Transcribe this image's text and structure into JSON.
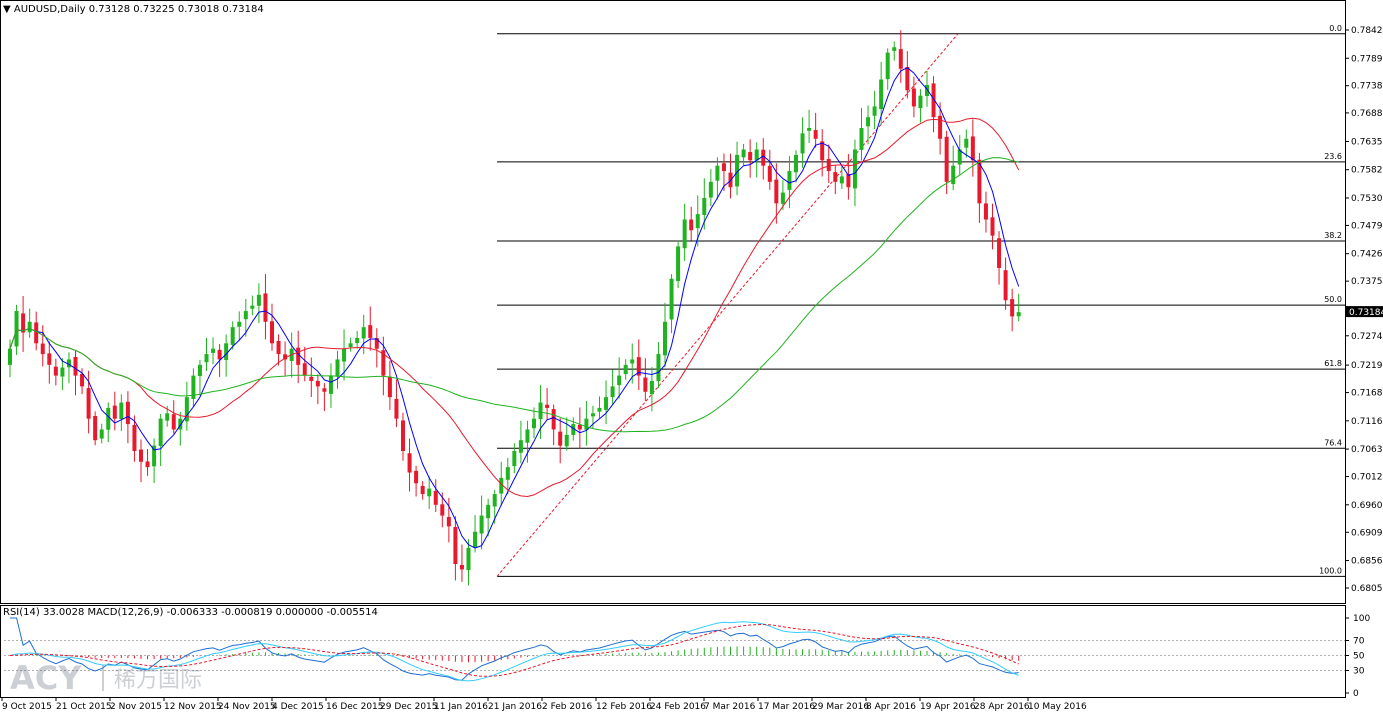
{
  "header": {
    "title": "AUDUSD,Daily  0.73128 0.73225 0.73018 0.73184"
  },
  "indicator_header": "RSI(14) 33.0028  MACD(12,26,9) -0.006333 -0.000819 0.000000 -0.005514",
  "watermark": {
    "latin": "ACY",
    "cjk": "稀万国际"
  },
  "current_price": "0.73184",
  "chart_data": {
    "type": "candlestick",
    "symbol": "AUDUSD",
    "timeframe": "Daily",
    "title": "AUDUSD,Daily  0.73128 0.73225 0.73018 0.73184",
    "ylim": [
      0.68055,
      0.7842
    ],
    "y_ticks": [
      "0.78420",
      "0.77895",
      "0.77385",
      "0.76880",
      "0.76350",
      "0.75825",
      "0.75300",
      "0.74790",
      "0.74265",
      "0.73755",
      "0.72740",
      "0.72195",
      "0.71685",
      "0.71160",
      "0.70635",
      "0.70125",
      "0.69600",
      "0.69090",
      "0.68565",
      "0.68055"
    ],
    "x_ticks": [
      "9 Oct 2015",
      "21 Oct 2015",
      "2 Nov 2015",
      "12 Nov 2015",
      "24 Nov 2015",
      "4 Dec 2015",
      "16 Dec 2015",
      "29 Dec 2015",
      "11 Jan 2016",
      "21 Jan 2016",
      "2 Feb 2016",
      "12 Feb 2016",
      "24 Feb 2016",
      "7 Mar 2016",
      "17 Mar 2016",
      "29 Mar 2016",
      "8 Apr 2016",
      "19 Apr 2016",
      "28 Apr 2016",
      "10 May 2016"
    ],
    "fibonacci": {
      "high": 0.7835,
      "low": 0.6827,
      "levels": [
        {
          "label": "0.0",
          "value": 0.7835
        },
        {
          "label": "23.6",
          "value": 0.7597
        },
        {
          "label": "38.2",
          "value": 0.745
        },
        {
          "label": "50.0",
          "value": 0.7331
        },
        {
          "label": "61.8",
          "value": 0.7212
        },
        {
          "label": "76.4",
          "value": 0.7065
        },
        {
          "label": "100.0",
          "value": 0.6827
        }
      ]
    },
    "close": [
      0.725,
      0.732,
      0.728,
      0.73,
      0.726,
      0.724,
      0.722,
      0.72,
      0.7215,
      0.723,
      0.72,
      0.718,
      0.712,
      0.708,
      0.71,
      0.714,
      0.712,
      0.715,
      0.711,
      0.706,
      0.704,
      0.703,
      0.707,
      0.712,
      0.713,
      0.71,
      0.712,
      0.716,
      0.72,
      0.722,
      0.724,
      0.725,
      0.723,
      0.726,
      0.729,
      0.73,
      0.732,
      0.733,
      0.735,
      0.73,
      0.726,
      0.724,
      0.723,
      0.725,
      0.722,
      0.72,
      0.719,
      0.718,
      0.717,
      0.72,
      0.723,
      0.725,
      0.726,
      0.727,
      0.729,
      0.727,
      0.725,
      0.72,
      0.716,
      0.712,
      0.706,
      0.702,
      0.7,
      0.698,
      0.699,
      0.696,
      0.694,
      0.692,
      0.685,
      0.684,
      0.688,
      0.691,
      0.694,
      0.696,
      0.698,
      0.701,
      0.703,
      0.706,
      0.708,
      0.71,
      0.712,
      0.715,
      0.714,
      0.71,
      0.707,
      0.709,
      0.711,
      0.71,
      0.712,
      0.713,
      0.714,
      0.716,
      0.718,
      0.72,
      0.722,
      0.723,
      0.72,
      0.717,
      0.719,
      0.724,
      0.73,
      0.738,
      0.744,
      0.749,
      0.747,
      0.75,
      0.753,
      0.756,
      0.759,
      0.758,
      0.755,
      0.761,
      0.762,
      0.76,
      0.762,
      0.759,
      0.756,
      0.752,
      0.754,
      0.758,
      0.761,
      0.765,
      0.766,
      0.764,
      0.76,
      0.758,
      0.756,
      0.757,
      0.755,
      0.762,
      0.766,
      0.768,
      0.77,
      0.775,
      0.78,
      0.781,
      0.777,
      0.773,
      0.77,
      0.772,
      0.774,
      0.768,
      0.764,
      0.756,
      0.759,
      0.762,
      0.764,
      0.76,
      0.752,
      0.749,
      0.746,
      0.74,
      0.734,
      0.731,
      0.7318
    ],
    "series": [
      {
        "name": "",
        "role": "fast-ma",
        "color": "#0000ff"
      },
      {
        "name": "",
        "role": "mid-ma",
        "color": "#e8192c"
      },
      {
        "name": "",
        "role": "slow-ma",
        "color": "#1fb31f"
      }
    ],
    "indicator": {
      "rsi_period": 14,
      "rsi_value": 33.0028,
      "macd_params": [
        12,
        26,
        9
      ],
      "macd_values": [
        -0.006333,
        -0.000819,
        0.0,
        -0.005514
      ],
      "y_ticks": [
        "100",
        "70",
        "50",
        "30",
        "0"
      ],
      "levels": [
        70,
        50,
        30
      ]
    }
  },
  "colors": {
    "bull": "#1fb31f",
    "bear": "#e8192c",
    "ma_fast": "#0000ff",
    "ma_mid": "#e8192c",
    "ma_slow": "#1fb31f",
    "price_tag": "#000000",
    "rsi": "#1f6fd1",
    "macd_line": "#33ccff",
    "signal": "#e8192c"
  }
}
